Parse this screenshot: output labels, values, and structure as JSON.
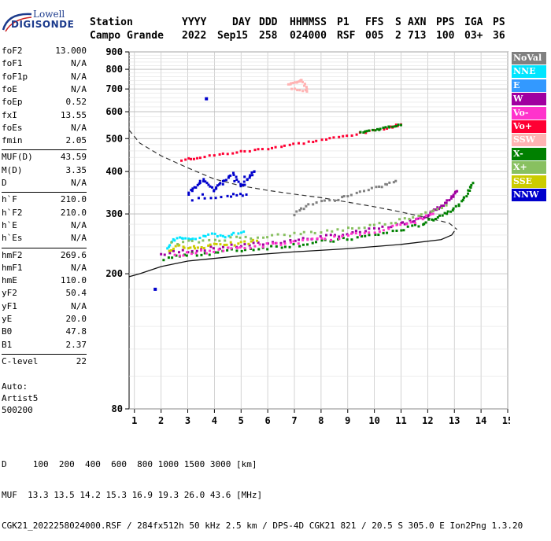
{
  "logo": {
    "line1": "Lowell",
    "line2": "DIGISONDE"
  },
  "header": {
    "labels": [
      "Station",
      "YYYY",
      "DAY",
      "DDD",
      "HHMMSS",
      "P1",
      "FFS",
      "S",
      "AXN",
      "PPS",
      "IGA",
      "PS"
    ],
    "values": [
      "Campo Grande",
      "2022",
      "Sep15",
      "258",
      "024000",
      "RSF",
      "005",
      "2",
      "713",
      "100",
      "03+",
      "36"
    ]
  },
  "parameters": {
    "group1": [
      {
        "key": "foF2",
        "value": "13.000"
      },
      {
        "key": "foF1",
        "value": "N/A"
      },
      {
        "key": "foF1p",
        "value": "N/A"
      },
      {
        "key": "foE",
        "value": "N/A"
      },
      {
        "key": "foEp",
        "value": "0.52"
      },
      {
        "key": "fxI",
        "value": "13.55"
      },
      {
        "key": "foEs",
        "value": "N/A"
      },
      {
        "key": "fmin",
        "value": "2.05"
      }
    ],
    "group2": [
      {
        "key": "MUF(D)",
        "value": "43.59"
      },
      {
        "key": "M(D)",
        "value": "3.35"
      },
      {
        "key": "D",
        "value": "N/A"
      }
    ],
    "group3": [
      {
        "key": "h`F",
        "value": "210.0"
      },
      {
        "key": "h`F2",
        "value": "210.0"
      },
      {
        "key": "h`E",
        "value": "N/A"
      },
      {
        "key": "h`Es",
        "value": "N/A"
      }
    ],
    "group4": [
      {
        "key": "hmF2",
        "value": "269.6"
      },
      {
        "key": "hmF1",
        "value": "N/A"
      },
      {
        "key": "hmE",
        "value": "110.0"
      },
      {
        "key": "yF2",
        "value": "50.4"
      },
      {
        "key": "yF1",
        "value": "N/A"
      },
      {
        "key": "yE",
        "value": "20.0"
      },
      {
        "key": "B0",
        "value": "47.8"
      },
      {
        "key": "B1",
        "value": "2.37"
      }
    ],
    "group5": [
      {
        "key": "C-level",
        "value": "22"
      }
    ]
  },
  "autoscale": {
    "line1": "Auto:",
    "line2": "Artist5",
    "line3": "500200"
  },
  "legend": [
    {
      "label": "NoVal",
      "color": "#808080"
    },
    {
      "label": "NNE",
      "color": "#00e5ff"
    },
    {
      "label": "E",
      "color": "#3399ff"
    },
    {
      "label": "W",
      "color": "#a000a0"
    },
    {
      "label": "Vo-",
      "color": "#ff33cc"
    },
    {
      "label": "Vo+",
      "color": "#ff0033"
    },
    {
      "label": "SSW",
      "color": "#ffb3b3"
    },
    {
      "label": "X-",
      "color": "#008000"
    },
    {
      "label": "X+",
      "color": "#88c060"
    },
    {
      "label": "SSE",
      "color": "#cccc00"
    },
    {
      "label": "NNW",
      "color": "#0000cc"
    }
  ],
  "chart_data": {
    "type": "scatter",
    "xlim": [
      0.8,
      15
    ],
    "ylim": [
      80,
      900
    ],
    "y_scale": "log",
    "x_ticks": [
      1,
      2,
      3,
      4,
      5,
      6,
      7,
      8,
      9,
      10,
      11,
      12,
      13,
      14,
      15
    ],
    "y_ticks": [
      80,
      200,
      300,
      400,
      500,
      600,
      700,
      800,
      900
    ],
    "grid": true,
    "legend_position": "right",
    "series": [
      {
        "color_key": "W",
        "points": [
          [
            2.0,
            228
          ],
          [
            3,
            234
          ],
          [
            4,
            238
          ],
          [
            5,
            242
          ],
          [
            6,
            246
          ],
          [
            7,
            251
          ],
          [
            8,
            256
          ],
          [
            9,
            262
          ],
          [
            10,
            270
          ],
          [
            11,
            280
          ],
          [
            11.5,
            288
          ],
          [
            12,
            298
          ],
          [
            12.3,
            308
          ],
          [
            12.6,
            318
          ],
          [
            12.9,
            335
          ],
          [
            13.1,
            350
          ]
        ]
      },
      {
        "color_key": "X-",
        "points": [
          [
            2.1,
            222
          ],
          [
            3,
            227
          ],
          [
            4,
            231
          ],
          [
            5,
            235
          ],
          [
            6,
            239
          ],
          [
            7,
            243
          ],
          [
            8,
            248
          ],
          [
            9,
            253
          ],
          [
            10,
            260
          ],
          [
            11,
            269
          ],
          [
            11.8,
            280
          ],
          [
            12.3,
            292
          ],
          [
            12.8,
            305
          ],
          [
            13.2,
            320
          ],
          [
            13.5,
            345
          ],
          [
            13.7,
            370
          ]
        ]
      },
      {
        "color_key": "Vo+",
        "points": [
          [
            2.8,
            432
          ],
          [
            3.5,
            440
          ],
          [
            4.5,
            452
          ],
          [
            5.5,
            462
          ],
          [
            6.5,
            474
          ],
          [
            7.5,
            488
          ],
          [
            8.5,
            502
          ],
          [
            9.5,
            518
          ],
          [
            10.5,
            538
          ],
          [
            11,
            550
          ]
        ]
      },
      {
        "color_key": "X-",
        "points": [
          [
            9.5,
            522
          ],
          [
            10,
            530
          ],
          [
            10.5,
            540
          ],
          [
            11,
            548
          ]
        ]
      },
      {
        "color_key": "NNW",
        "points": [
          [
            3,
            345
          ],
          [
            3.3,
            360
          ],
          [
            3.6,
            380
          ],
          [
            4,
            355
          ],
          [
            4.3,
            372
          ],
          [
            4.7,
            395
          ],
          [
            5,
            360
          ],
          [
            5.3,
            385
          ],
          [
            5.5,
            400
          ],
          [
            3.2,
            330
          ],
          [
            4.5,
            340
          ],
          [
            5.2,
            342
          ]
        ]
      },
      {
        "color_key": "NNE",
        "points": [
          [
            2.2,
            240
          ],
          [
            2.6,
            255
          ],
          [
            3.1,
            250
          ],
          [
            3.8,
            262
          ],
          [
            4.4,
            258
          ],
          [
            5.1,
            266
          ]
        ]
      },
      {
        "color_key": "SSE",
        "points": [
          [
            2.3,
            235
          ],
          [
            2.8,
            242
          ],
          [
            3.4,
            238
          ],
          [
            4.1,
            246
          ],
          [
            4.9,
            244
          ],
          [
            5.6,
            250
          ]
        ]
      },
      {
        "color_key": "Vo-",
        "points": [
          [
            2.5,
            226
          ],
          [
            3.5,
            232
          ],
          [
            4.5,
            236
          ],
          [
            5.5,
            241
          ],
          [
            6.5,
            245
          ],
          [
            7.5,
            250
          ],
          [
            8.5,
            255
          ],
          [
            9.5,
            262
          ],
          [
            10.5,
            272
          ],
          [
            11.5,
            285
          ],
          [
            12.2,
            300
          ]
        ]
      },
      {
        "color_key": "X+",
        "points": [
          [
            2.4,
            245
          ],
          [
            3.6,
            250
          ],
          [
            4.8,
            255
          ],
          [
            6,
            258
          ],
          [
            7.2,
            262
          ],
          [
            8.4,
            268
          ],
          [
            9.6,
            275
          ],
          [
            10.8,
            285
          ],
          [
            11.8,
            300
          ],
          [
            12.7,
            318
          ]
        ]
      },
      {
        "color_key": "SSW",
        "points": [
          [
            6.8,
            720
          ],
          [
            7.1,
            735
          ],
          [
            7.3,
            745
          ],
          [
            7.5,
            690
          ],
          [
            6.9,
            700
          ]
        ]
      },
      {
        "color_key": "NoVal",
        "points": [
          [
            7.0,
            300
          ],
          [
            7.5,
            320
          ],
          [
            8.5,
            330
          ],
          [
            9.3,
            345
          ],
          [
            10.2,
            360
          ],
          [
            10.8,
            375
          ]
        ]
      }
    ],
    "profile_curve": [
      [
        13.0,
        267
      ],
      [
        12.9,
        260
      ],
      [
        12.5,
        252
      ],
      [
        11,
        244
      ],
      [
        9,
        237
      ],
      [
        7,
        232
      ],
      [
        5,
        226
      ],
      [
        3,
        218
      ],
      [
        2,
        210
      ],
      [
        1.2,
        200
      ],
      [
        0.8,
        196
      ]
    ],
    "dashed_curve": [
      [
        0.8,
        530
      ],
      [
        1.2,
        485
      ],
      [
        2,
        445
      ],
      [
        3,
        410
      ],
      [
        4,
        380
      ],
      [
        5,
        363
      ],
      [
        6,
        352
      ],
      [
        7,
        343
      ],
      [
        8,
        335
      ],
      [
        9,
        325
      ],
      [
        10,
        315
      ],
      [
        11,
        304
      ],
      [
        12,
        292
      ],
      [
        12.8,
        282
      ],
      [
        13.1,
        270
      ]
    ],
    "stray_points": [
      [
        1.78,
        180
      ],
      [
        3.7,
        655
      ]
    ]
  },
  "footer": {
    "line1": "D     100  200  400  600  800 1000 1500 3000 [km]",
    "line2": "MUF  13.3 13.5 14.2 15.3 16.9 19.3 26.0 43.6 [MHz]",
    "line3": "CGK21_2022258024000.RSF / 284fx512h 50 kHz 2.5 km / DPS-4D CGK21 821 / 20.5 S 305.0 E Ion2Png 1.3.20"
  }
}
